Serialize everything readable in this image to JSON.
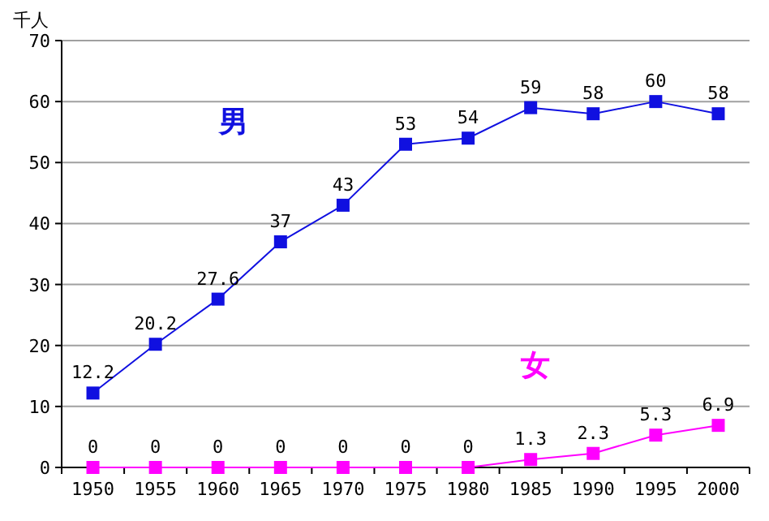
{
  "chart_data": {
    "type": "line",
    "ylabel": "千人",
    "categories": [
      "1950",
      "1955",
      "1960",
      "1965",
      "1970",
      "1975",
      "1980",
      "1985",
      "1990",
      "1995",
      "2000"
    ],
    "series": [
      {
        "name": "男",
        "color": "#1010e0",
        "values": [
          12.2,
          20.2,
          27.6,
          37,
          43,
          53,
          54,
          59,
          58,
          60,
          58
        ]
      },
      {
        "name": "女",
        "color": "#ff00ff",
        "values": [
          0,
          0,
          0,
          0,
          0,
          0,
          0,
          1.3,
          2.3,
          5.3,
          6.9
        ]
      }
    ],
    "ylim": [
      0,
      70
    ],
    "yticks": [
      0,
      10,
      20,
      30,
      40,
      50,
      60,
      70
    ],
    "grid": "y",
    "marker": "square",
    "data_labels": true
  }
}
